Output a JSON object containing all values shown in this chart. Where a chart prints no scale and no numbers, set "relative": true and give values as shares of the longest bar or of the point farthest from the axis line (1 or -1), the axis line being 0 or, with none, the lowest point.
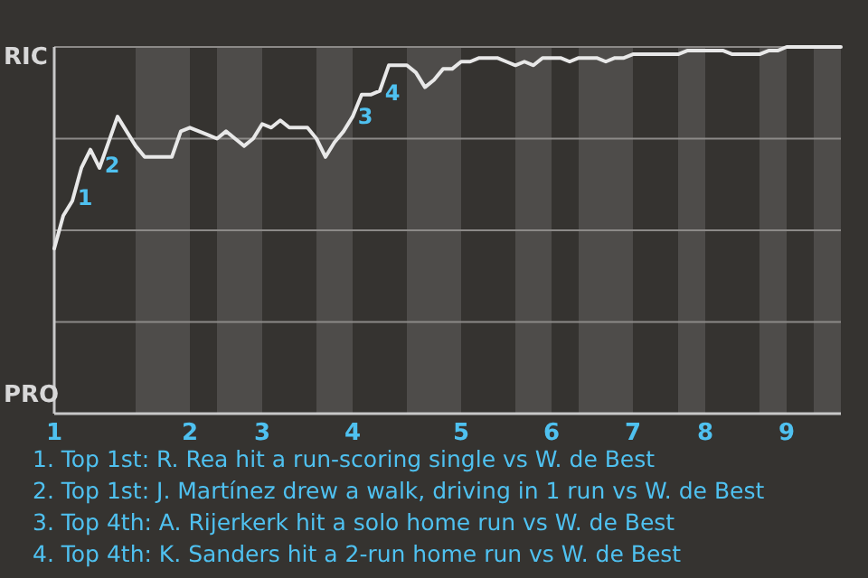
{
  "chart_data": {
    "type": "line",
    "relative": true,
    "categories": [
      "1",
      null,
      null,
      null,
      null,
      null,
      null,
      null,
      null,
      null,
      null,
      null,
      null,
      null,
      null,
      "2",
      null,
      null,
      null,
      null,
      null,
      null,
      null,
      "3",
      null,
      null,
      null,
      null,
      null,
      null,
      null,
      null,
      null,
      "4",
      null,
      null,
      null,
      null,
      null,
      null,
      null,
      null,
      null,
      null,
      null,
      "5",
      null,
      null,
      null,
      null,
      null,
      null,
      null,
      null,
      null,
      "6",
      null,
      null,
      null,
      null,
      null,
      null,
      null,
      null,
      "7",
      null,
      null,
      null,
      null,
      null,
      null,
      null,
      "8",
      null,
      null,
      null,
      null,
      null,
      null,
      null,
      null,
      "9",
      null,
      null,
      null,
      null,
      null,
      null
    ],
    "grid": "y",
    "marker": "none",
    "series": [
      {
        "color": "#e8e8e8",
        "values": [
          0.45,
          0.54,
          0.58,
          0.67,
          0.72,
          0.67,
          0.74,
          0.81,
          0.77,
          0.73,
          0.7,
          0.7,
          0.7,
          0.7,
          0.77,
          0.78,
          0.77,
          0.76,
          0.75,
          0.77,
          0.75,
          0.73,
          0.75,
          0.79,
          0.78,
          0.8,
          0.78,
          0.78,
          0.78,
          0.75,
          0.7,
          0.74,
          0.77,
          0.81,
          0.87,
          0.87,
          0.88,
          0.95,
          0.95,
          0.95,
          0.93,
          0.89,
          0.91,
          0.94,
          0.94,
          0.96,
          0.96,
          0.97,
          0.97,
          0.97,
          0.96,
          0.95,
          0.96,
          0.95,
          0.97,
          0.97,
          0.97,
          0.96,
          0.97,
          0.97,
          0.97,
          0.96,
          0.97,
          0.97,
          0.98,
          0.98,
          0.98,
          0.98,
          0.98,
          0.98,
          0.99,
          0.99,
          0.99,
          0.99,
          0.99,
          0.98,
          0.98,
          0.98,
          0.98,
          0.99,
          0.99,
          1.0,
          1.0,
          1.0,
          1.0,
          1.0,
          1.0,
          1.0
        ]
      }
    ],
    "annotations": [
      "RIC",
      "PRO",
      "1",
      "2",
      "3",
      "4",
      "1. Top 1st: R. Rea hit a run-scoring single vs W. de Best",
      "2. Top 1st: J. Martínez drew a walk, driving in 1 run vs W. de Best",
      "3. Top 4th: A. Rijerkerk hit a solo home run vs W. de Best",
      "4. Top 4th: K. Sanders hit a 2-run home run vs W. de Best"
    ]
  }
}
